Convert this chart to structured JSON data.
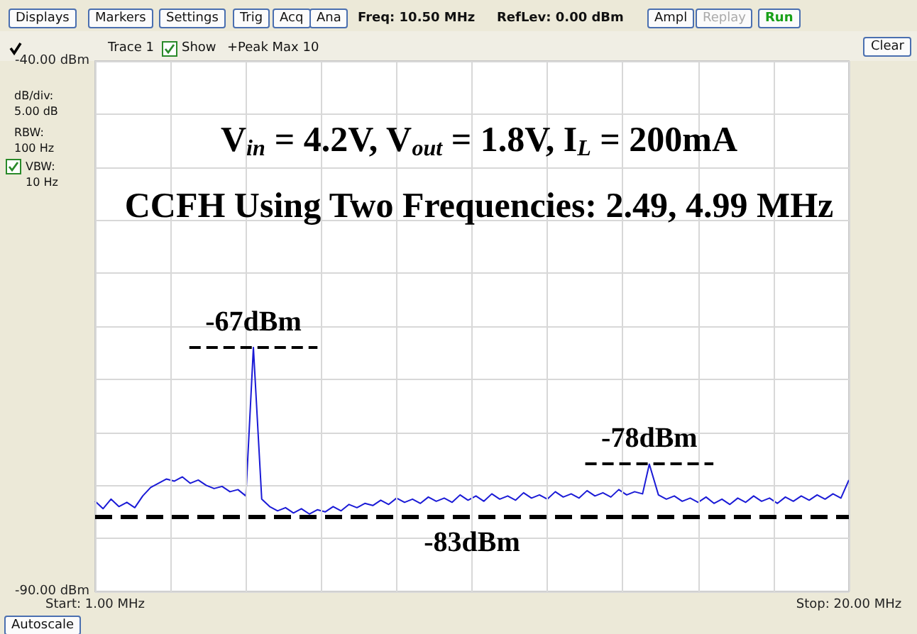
{
  "chart_data": {
    "type": "line",
    "title": "V$_{in}$ = 4.2V, V$_{out}$ = 1.8V, I$_{L}$ = 200mA",
    "subtitle": "CCFH Using Two Frequencies: 2.49, 4.99 MHz",
    "x": [
      1.0,
      1.2,
      1.4,
      1.6,
      1.8,
      2.0,
      2.2,
      2.4,
      2.6,
      2.8,
      3.0,
      3.2,
      3.4,
      3.6,
      3.8,
      4.0,
      4.2,
      4.4,
      4.6,
      4.8,
      4.99,
      5.2,
      5.4,
      5.6,
      5.8,
      6.0,
      6.2,
      6.4,
      6.6,
      6.8,
      7.0,
      7.2,
      7.4,
      7.6,
      7.8,
      8.0,
      8.2,
      8.4,
      8.6,
      8.8,
      9.0,
      9.2,
      9.4,
      9.6,
      9.8,
      10.0,
      10.2,
      10.4,
      10.6,
      10.8,
      11.0,
      11.2,
      11.4,
      11.6,
      11.8,
      12.0,
      12.2,
      12.4,
      12.6,
      12.8,
      13.0,
      13.2,
      13.4,
      13.6,
      13.8,
      14.0,
      14.2,
      14.4,
      14.6,
      14.8,
      14.97,
      15.2,
      15.4,
      15.6,
      15.8,
      16.0,
      16.2,
      16.4,
      16.6,
      16.8,
      17.0,
      17.2,
      17.4,
      17.6,
      17.8,
      18.0,
      18.2,
      18.4,
      18.6,
      18.8,
      19.0,
      19.2,
      19.4,
      19.6,
      19.8,
      20.0
    ],
    "series": [
      {
        "color": "#1a1ad6",
        "values": [
          -81.5,
          -82.2,
          -81.3,
          -82.0,
          -81.6,
          -82.1,
          -81.0,
          -80.2,
          -79.8,
          -79.4,
          -79.6,
          -79.2,
          -79.8,
          -79.5,
          -80.0,
          -80.3,
          -80.1,
          -80.6,
          -80.4,
          -81.0,
          -67,
          -81.3,
          -82.0,
          -82.4,
          -82.1,
          -82.6,
          -82.2,
          -82.7,
          -82.3,
          -82.5,
          -82.0,
          -82.4,
          -81.8,
          -82.1,
          -81.7,
          -81.9,
          -81.4,
          -81.8,
          -81.2,
          -81.6,
          -81.3,
          -81.7,
          -81.1,
          -81.5,
          -81.2,
          -81.6,
          -80.9,
          -81.4,
          -81.0,
          -81.5,
          -80.8,
          -81.3,
          -81.0,
          -81.4,
          -80.7,
          -81.2,
          -80.9,
          -81.3,
          -80.6,
          -81.1,
          -80.8,
          -81.2,
          -80.5,
          -81.0,
          -80.7,
          -81.1,
          -80.4,
          -80.9,
          -80.6,
          -80.8,
          -78,
          -80.9,
          -81.3,
          -81.0,
          -81.5,
          -81.2,
          -81.6,
          -81.1,
          -81.7,
          -81.3,
          -81.8,
          -81.2,
          -81.6,
          -81.0,
          -81.5,
          -81.2,
          -81.7,
          -81.1,
          -81.5,
          -81.0,
          -81.4,
          -80.9,
          -81.3,
          -80.8,
          -81.2,
          -79.5
        ]
      }
    ],
    "xlim": [
      1,
      20
    ],
    "xticks": [
      {
        "value": 1,
        "label": "Start: 1.00 MHz"
      },
      {
        "value": 2.9,
        "label": null
      },
      {
        "value": 4.8,
        "label": null
      },
      {
        "value": 6.7,
        "label": null
      },
      {
        "value": 8.6,
        "label": null
      },
      {
        "value": 10.5,
        "label": null
      },
      {
        "value": 12.4,
        "label": null
      },
      {
        "value": 14.3,
        "label": null
      },
      {
        "value": 16.2,
        "label": null
      },
      {
        "value": 18.1,
        "label": null
      },
      {
        "value": 20,
        "label": "Stop: 20.00 MHz"
      }
    ],
    "ylim": [
      -90,
      -40
    ],
    "yticks": [
      {
        "value": -90,
        "label": "-90.00 dBm"
      },
      {
        "value": -85,
        "label": null
      },
      {
        "value": -80,
        "label": null
      },
      {
        "value": -75,
        "label": null
      },
      {
        "value": -70,
        "label": null
      },
      {
        "value": -65,
        "label": null
      },
      {
        "value": -60,
        "label": null
      },
      {
        "value": -55,
        "label": null
      },
      {
        "value": -50,
        "label": null
      },
      {
        "value": -45,
        "label": null
      },
      {
        "value": -40,
        "label": "-40.00 dBm"
      }
    ],
    "grid": true,
    "ref_lines": [
      {
        "axis": "y",
        "value": -83,
        "label": "-83dBm",
        "color": "#000000",
        "line_style": "dashed"
      }
    ],
    "annotations": [
      "Displays",
      "Markers",
      "Settings",
      "Trig",
      "Acq",
      "Ana",
      "Freq: 10.50 MHz",
      "RefLev: 0.00 dBm",
      "Ampl",
      "Replay",
      "Run",
      "Trace 1",
      "Show",
      "+Peak Max 10",
      "Clear",
      "dB/div: 5.00 dB",
      "RBW: 100 Hz",
      "VBW: 10 Hz",
      "Autoscale",
      {
        "text": "-67dBm",
        "x": 4.99,
        "y": -67
      },
      {
        "text": "-78dBm",
        "x": 14.97,
        "y": -78
      }
    ]
  }
}
